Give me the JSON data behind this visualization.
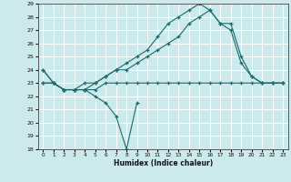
{
  "xlabel": "Humidex (Indice chaleur)",
  "x": [
    0,
    1,
    2,
    3,
    4,
    5,
    6,
    7,
    8,
    9,
    10,
    11,
    12,
    13,
    14,
    15,
    16,
    17,
    18,
    19,
    20,
    21,
    22,
    23
  ],
  "line1_x": [
    0,
    1,
    2,
    3,
    4,
    5,
    6,
    7,
    8,
    9
  ],
  "line1_y": [
    24,
    23,
    22.5,
    22.5,
    22.5,
    22,
    21.5,
    20.5,
    18,
    21.5
  ],
  "line2_x": [
    0,
    1,
    2,
    3,
    4,
    5,
    6,
    7,
    8,
    9,
    10,
    11,
    12,
    13,
    14,
    15,
    16,
    17,
    18,
    19,
    20,
    21,
    22,
    23
  ],
  "line2_y": [
    23,
    23,
    22.5,
    22.5,
    22.5,
    22.5,
    23,
    23,
    23,
    23,
    23,
    23,
    23,
    23,
    23,
    23,
    23,
    23,
    23,
    23,
    23,
    23,
    23,
    23
  ],
  "line3_x": [
    0,
    1,
    2,
    3,
    4,
    5,
    6,
    7,
    8,
    9,
    10,
    11,
    12,
    13,
    14,
    15,
    16,
    17,
    18,
    19,
    20,
    21,
    22,
    23
  ],
  "line3_y": [
    23,
    23,
    22.5,
    22.5,
    23,
    23,
    23.5,
    24,
    24,
    24.5,
    25,
    25.5,
    26,
    26.5,
    27.5,
    28,
    28.5,
    27.5,
    27,
    24.5,
    23.5,
    23,
    23,
    23
  ],
  "line4_x": [
    0,
    1,
    2,
    3,
    4,
    5,
    6,
    7,
    8,
    9,
    10,
    11,
    12,
    13,
    14,
    15,
    16,
    17,
    18,
    19,
    20,
    21,
    22,
    23
  ],
  "line4_y": [
    24,
    23,
    22.5,
    22.5,
    22.5,
    23,
    23.5,
    24,
    24.5,
    25,
    25.5,
    26.5,
    27.5,
    28,
    28.5,
    29,
    28.5,
    27.5,
    27.5,
    25,
    23.5,
    23,
    23,
    23
  ],
  "bg_color": "#cce9ec",
  "grid_color": "#ffffff",
  "line_color": "#1a6b6b",
  "ylim": [
    18,
    29
  ],
  "xlim": [
    -0.5,
    23.5
  ],
  "yticks": [
    18,
    19,
    20,
    21,
    22,
    23,
    24,
    25,
    26,
    27,
    28,
    29
  ],
  "xticks": [
    0,
    1,
    2,
    3,
    4,
    5,
    6,
    7,
    8,
    9,
    10,
    11,
    12,
    13,
    14,
    15,
    16,
    17,
    18,
    19,
    20,
    21,
    22,
    23
  ],
  "figsize": [
    3.2,
    2.0
  ],
  "dpi": 100
}
